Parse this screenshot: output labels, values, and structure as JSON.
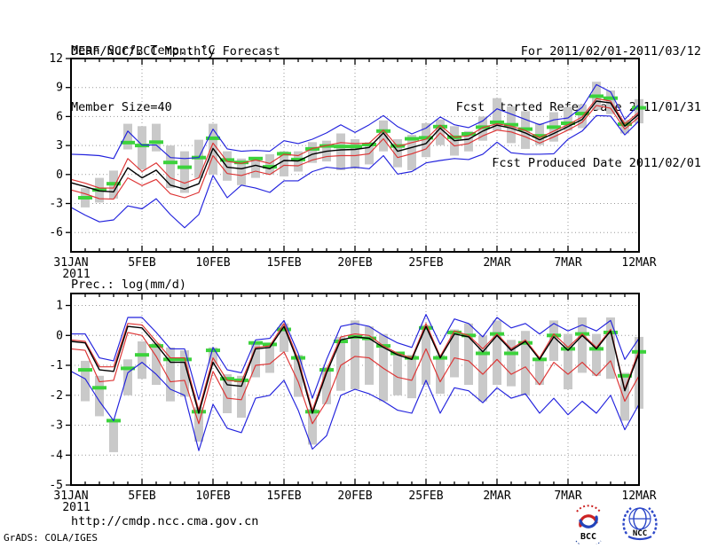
{
  "header": {
    "title": "DERF/NCC/BCC Monthly Forecast",
    "member_size": "Member Size=40",
    "forecast_period": "For 2011/02/01-2011/03/12",
    "refer_date": "Fcst Started Refer Date 2011/01/31",
    "produced_date": "Fcst Produced Date 2011/02/01"
  },
  "footer": {
    "url": "http://cmdp.ncc.cma.gov.cn",
    "credit": "GrADS: COLA/IGES"
  },
  "logos": {
    "bcc": "BCC",
    "ncc": "NCC"
  },
  "chart_data": [
    {
      "type": "line",
      "title": "Mean Surf. Temp.: °C",
      "ylim": [
        -8,
        12
      ],
      "yticks": [
        -6,
        -3,
        0,
        3,
        6,
        9,
        12
      ],
      "grid": true,
      "n_days": 41,
      "xticks": [
        {
          "day": 0,
          "label": "31JAN",
          "year": "2011"
        },
        {
          "day": 5,
          "label": "5FEB"
        },
        {
          "day": 10,
          "label": "10FEB"
        },
        {
          "day": 15,
          "label": "15FEB"
        },
        {
          "day": 20,
          "label": "20FEB"
        },
        {
          "day": 25,
          "label": "25FEB"
        },
        {
          "day": 30,
          "label": "2MAR"
        },
        {
          "day": 35,
          "label": "7MAR"
        },
        {
          "day": 40,
          "label": "12MAR"
        }
      ],
      "bars": {
        "name": "ensemble-spread",
        "color": "#c9c9c9",
        "ranges": [
          null,
          [
            -3.4,
            -1.4
          ],
          [
            -2.9,
            -0.35
          ],
          [
            -2.5,
            0.4
          ],
          [
            2.6,
            5.25
          ],
          [
            0.5,
            5.0
          ],
          [
            2.4,
            5.25
          ],
          [
            -1.4,
            3.0
          ],
          [
            -1.9,
            2.4
          ],
          [
            -0.35,
            3.6
          ],
          [
            0.0,
            5.25
          ],
          [
            -0.65,
            2.4
          ],
          [
            -1.1,
            1.65
          ],
          [
            -0.35,
            1.8
          ],
          [
            0.0,
            2.1
          ],
          [
            -0.2,
            2.4
          ],
          [
            0.3,
            2.4
          ],
          [
            1.2,
            3.35
          ],
          [
            1.35,
            3.5
          ],
          [
            0.45,
            4.25
          ],
          [
            0.6,
            3.65
          ],
          [
            1.05,
            3.35
          ],
          [
            2.4,
            5.6
          ],
          [
            0.75,
            3.65
          ],
          [
            0.45,
            4.1
          ],
          [
            1.8,
            5.3
          ],
          [
            3.05,
            5.7
          ],
          [
            1.95,
            5.0
          ],
          [
            2.4,
            4.5
          ],
          [
            3.5,
            6.0
          ],
          [
            4.55,
            7.9
          ],
          [
            3.25,
            7.05
          ],
          [
            2.65,
            6.55
          ],
          [
            3.05,
            5.3
          ],
          [
            3.4,
            6.45
          ],
          [
            4.55,
            7.0
          ],
          [
            4.8,
            7.25
          ],
          [
            6.7,
            9.6
          ],
          [
            6.25,
            8.7
          ],
          [
            4.25,
            5.65
          ],
          [
            5.3,
            7.8
          ]
        ]
      },
      "series": [
        {
          "name": "observation",
          "style": "dash-marker",
          "color": "#3cd23c",
          "values": [
            null,
            -2.4,
            -1.6,
            -0.95,
            3.3,
            3.0,
            3.35,
            1.25,
            0.75,
            1.75,
            3.75,
            1.5,
            1.25,
            1.65,
            0.8,
            2.15,
            1.55,
            2.65,
            2.95,
            2.9,
            2.9,
            3.1,
            4.5,
            2.95,
            3.7,
            3.8,
            4.95,
            3.85,
            4.2,
            4.9,
            5.4,
            5.15,
            4.7,
            4.0,
            4.9,
            5.3,
            6.3,
            8.1,
            7.9,
            5.2,
            6.9
          ]
        },
        {
          "name": "ensemble-max",
          "style": "line",
          "color": "#2222dd",
          "values": [
            2.1,
            2.05,
            1.95,
            1.65,
            4.5,
            3.05,
            3.05,
            1.75,
            1.65,
            1.75,
            4.7,
            2.65,
            2.4,
            2.5,
            2.4,
            3.5,
            3.2,
            3.65,
            4.3,
            5.15,
            4.35,
            5.15,
            6.1,
            4.95,
            4.2,
            4.8,
            5.95,
            5.15,
            4.85,
            5.55,
            6.8,
            6.25,
            5.7,
            5.15,
            5.65,
            5.85,
            6.95,
            9.3,
            8.55,
            5.7,
            7.25
          ]
        },
        {
          "name": "ensemble-min",
          "style": "line",
          "color": "#2222dd",
          "values": [
            -3.4,
            -4.2,
            -4.9,
            -4.7,
            -3.25,
            -3.55,
            -2.5,
            -4.15,
            -5.5,
            -4.15,
            -0.1,
            -2.4,
            -1.1,
            -1.4,
            -1.85,
            -0.65,
            -0.65,
            0.3,
            0.75,
            0.6,
            0.75,
            0.6,
            1.95,
            0.05,
            0.3,
            1.2,
            1.45,
            1.65,
            1.55,
            2.1,
            3.35,
            2.25,
            2.1,
            2.1,
            2.15,
            3.65,
            4.5,
            6.1,
            6.05,
            4.1,
            5.55
          ]
        },
        {
          "name": "mean-plus-spread",
          "style": "line",
          "color": "#dd3333",
          "values": [
            -0.5,
            -0.9,
            -1.4,
            -1.4,
            1.65,
            0.3,
            1.2,
            -0.35,
            -0.9,
            -0.35,
            3.25,
            1.35,
            1.15,
            1.5,
            1.15,
            2.1,
            1.95,
            2.7,
            3.0,
            3.3,
            3.2,
            3.25,
            4.6,
            2.9,
            3.3,
            3.65,
            5.1,
            3.85,
            4.0,
            4.85,
            5.25,
            5.0,
            4.55,
            3.8,
            4.5,
            5.15,
            5.95,
            7.85,
            7.6,
            5.25,
            6.45
          ]
        },
        {
          "name": "mean-minus-spread",
          "style": "line",
          "color": "#dd3333",
          "values": [
            -1.6,
            -2.0,
            -2.5,
            -2.55,
            -0.35,
            -1.15,
            -0.5,
            -2.0,
            -2.4,
            -1.85,
            1.95,
            0.1,
            -0.1,
            0.35,
            0.0,
            0.95,
            0.9,
            1.5,
            1.85,
            1.95,
            1.95,
            2.15,
            3.7,
            1.75,
            2.15,
            2.65,
            4.3,
            2.95,
            3.2,
            4.0,
            4.6,
            4.4,
            3.9,
            3.25,
            3.9,
            4.6,
            5.4,
            7.15,
            6.85,
            4.7,
            5.95
          ]
        },
        {
          "name": "ensemble-mean",
          "style": "line",
          "color": "#000000",
          "values": [
            -0.85,
            -1.25,
            -1.7,
            -1.8,
            0.7,
            -0.35,
            0.45,
            -1.1,
            -1.5,
            -0.95,
            2.7,
            0.75,
            0.6,
            0.95,
            0.6,
            1.45,
            1.4,
            2.1,
            2.4,
            2.55,
            2.6,
            2.8,
            4.3,
            2.4,
            2.8,
            3.2,
            4.8,
            3.5,
            3.65,
            4.5,
            5.1,
            4.8,
            4.3,
            3.6,
            4.25,
            4.95,
            5.7,
            7.6,
            7.4,
            5.0,
            6.25
          ]
        }
      ]
    },
    {
      "type": "line",
      "title": "Prec.: log(mm/d)",
      "ylim": [
        -5,
        1.4
      ],
      "yticks": [
        -5,
        -4,
        -3,
        -2,
        -1,
        0,
        1
      ],
      "grid": true,
      "n_days": 41,
      "xticks": [
        {
          "day": 0,
          "label": "31JAN",
          "year": "2011"
        },
        {
          "day": 5,
          "label": "5FEB"
        },
        {
          "day": 10,
          "label": "10FEB"
        },
        {
          "day": 15,
          "label": "15FEB"
        },
        {
          "day": 20,
          "label": "20FEB"
        },
        {
          "day": 25,
          "label": "25FEB"
        },
        {
          "day": 30,
          "label": "2MAR"
        },
        {
          "day": 35,
          "label": "7MAR"
        },
        {
          "day": 40,
          "label": "12MAR"
        }
      ],
      "bars": {
        "name": "ensemble-spread",
        "color": "#c9c9c9",
        "ranges": [
          null,
          [
            -2.2,
            -0.85
          ],
          [
            -2.7,
            -1.35
          ],
          [
            -3.9,
            -2.8
          ],
          [
            -2.0,
            -0.8
          ],
          [
            -1.45,
            -0.2
          ],
          [
            -1.65,
            -0.25
          ],
          [
            -2.2,
            -0.4
          ],
          [
            -2.05,
            -0.5
          ],
          [
            -3.55,
            -2.4
          ],
          [
            -0.95,
            -0.4
          ],
          [
            -2.6,
            -1.3
          ],
          [
            -2.75,
            -1.35
          ],
          [
            -1.4,
            -0.25
          ],
          [
            -1.25,
            -0.3
          ],
          [
            -0.55,
            0.4
          ],
          [
            -2.05,
            -0.65
          ],
          [
            -3.65,
            -2.45
          ],
          [
            -2.3,
            -1.05
          ],
          [
            -1.85,
            -0.05
          ],
          [
            -1.8,
            0.5
          ],
          [
            -1.65,
            0.3
          ],
          [
            -2.2,
            0.05
          ],
          [
            -2.0,
            -0.6
          ],
          [
            -2.1,
            -0.65
          ],
          [
            -1.65,
            0.35
          ],
          [
            -1.95,
            -0.65
          ],
          [
            -1.4,
            0.2
          ],
          [
            -1.65,
            0.4
          ],
          [
            -2.2,
            0.0
          ],
          [
            -1.65,
            0.5
          ],
          [
            -1.7,
            -0.15
          ],
          [
            -2.0,
            0.15
          ],
          [
            -1.65,
            -0.75
          ],
          [
            -0.85,
            0.5
          ],
          [
            -1.8,
            0.05
          ],
          [
            -1.25,
            0.6
          ],
          [
            -1.35,
            0.05
          ],
          [
            -1.45,
            0.6
          ],
          [
            -2.85,
            -1.25
          ],
          [
            -2.45,
            -0.05
          ]
        ]
      },
      "series": [
        {
          "name": "observation",
          "style": "dash-marker",
          "color": "#3cd23c",
          "values": [
            null,
            -1.15,
            -1.75,
            -2.85,
            -1.1,
            -0.65,
            -0.35,
            -0.8,
            -0.8,
            -2.55,
            -0.5,
            -1.45,
            -1.5,
            -0.25,
            -0.3,
            0.2,
            -0.75,
            -2.55,
            -1.15,
            -0.2,
            -0.05,
            -0.1,
            -0.35,
            -0.6,
            -0.75,
            0.25,
            -0.75,
            0.1,
            0.0,
            -0.6,
            0.05,
            -0.6,
            -0.25,
            -0.8,
            0.0,
            -0.45,
            0.05,
            -0.45,
            0.1,
            -1.35,
            -0.55
          ]
        },
        {
          "name": "ensemble-max",
          "style": "line",
          "color": "#2222dd",
          "values": [
            0.05,
            0.05,
            -0.75,
            -0.85,
            0.6,
            0.6,
            0.1,
            -0.45,
            -0.45,
            -2.15,
            -0.4,
            -1.15,
            -1.25,
            -0.15,
            -0.1,
            0.5,
            -0.6,
            -2.1,
            -0.8,
            0.3,
            0.4,
            0.3,
            0.0,
            -0.25,
            -0.4,
            0.7,
            -0.3,
            0.55,
            0.4,
            -0.05,
            0.6,
            0.25,
            0.4,
            0.05,
            0.4,
            0.15,
            0.35,
            0.15,
            0.5,
            -0.8,
            -0.1
          ]
        },
        {
          "name": "ensemble-min",
          "style": "line",
          "color": "#2222dd",
          "values": [
            -1.2,
            -1.45,
            -2.2,
            -2.85,
            -1.25,
            -0.9,
            -1.3,
            -1.8,
            -2.0,
            -3.85,
            -2.3,
            -3.1,
            -3.25,
            -2.1,
            -2.0,
            -1.5,
            -2.5,
            -3.8,
            -3.35,
            -2.0,
            -1.8,
            -1.95,
            -2.2,
            -2.5,
            -2.6,
            -1.5,
            -2.6,
            -1.75,
            -1.85,
            -2.25,
            -1.75,
            -2.1,
            -1.95,
            -2.6,
            -2.1,
            -2.65,
            -2.2,
            -2.6,
            -2.0,
            -3.15,
            -2.3
          ]
        },
        {
          "name": "mean-plus-spread",
          "style": "line",
          "color": "#dd3333",
          "values": [
            -0.15,
            -0.2,
            -1.05,
            -1.05,
            0.4,
            0.35,
            -0.2,
            -0.75,
            -0.75,
            -2.5,
            -0.75,
            -1.5,
            -1.55,
            -0.4,
            -0.35,
            0.4,
            -0.8,
            -2.5,
            -1.15,
            -0.05,
            0.05,
            0.0,
            -0.35,
            -0.6,
            -0.75,
            0.4,
            -0.7,
            0.15,
            0.0,
            -0.45,
            0.05,
            -0.45,
            -0.15,
            -0.75,
            0.05,
            -0.4,
            0.05,
            -0.4,
            0.2,
            -1.8,
            -0.5
          ]
        },
        {
          "name": "mean-minus-spread",
          "style": "line",
          "color": "#dd3333",
          "values": [
            -0.45,
            -0.5,
            -1.55,
            -1.5,
            0.1,
            0.0,
            -0.7,
            -1.55,
            -1.5,
            -2.95,
            -1.2,
            -2.1,
            -2.15,
            -1.0,
            -0.95,
            -0.55,
            -1.55,
            -2.95,
            -2.2,
            -1.0,
            -0.7,
            -0.75,
            -1.1,
            -1.4,
            -1.5,
            -0.45,
            -1.55,
            -0.75,
            -0.85,
            -1.3,
            -0.8,
            -1.3,
            -1.05,
            -1.65,
            -0.9,
            -1.3,
            -0.9,
            -1.35,
            -0.85,
            -2.2,
            -1.35
          ]
        },
        {
          "name": "ensemble-mean",
          "style": "line",
          "color": "#000000",
          "values": [
            -0.2,
            -0.25,
            -1.15,
            -1.2,
            0.3,
            0.25,
            -0.3,
            -0.9,
            -0.9,
            -2.6,
            -0.9,
            -1.65,
            -1.7,
            -0.45,
            -0.4,
            0.3,
            -0.9,
            -2.6,
            -1.25,
            -0.15,
            -0.05,
            -0.1,
            -0.4,
            -0.65,
            -0.8,
            0.3,
            -0.75,
            0.05,
            -0.05,
            -0.55,
            0.0,
            -0.5,
            -0.2,
            -0.8,
            -0.05,
            -0.5,
            0.0,
            -0.45,
            0.15,
            -1.85,
            -0.6
          ]
        }
      ]
    }
  ]
}
